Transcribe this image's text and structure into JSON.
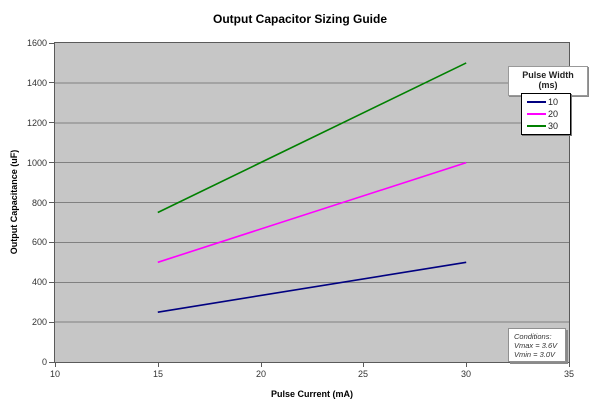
{
  "chart_data": {
    "type": "line",
    "title": "Output Capacitor Sizing Guide",
    "xlabel": "Pulse Current (mA)",
    "ylabel": "Output Capacitance (uF)",
    "xlim": [
      10,
      35
    ],
    "ylim": [
      0,
      1600
    ],
    "x_ticks": [
      10,
      15,
      20,
      25,
      30,
      35
    ],
    "y_ticks": [
      0,
      200,
      400,
      600,
      800,
      1000,
      1200,
      1400,
      1600
    ],
    "grid": "horizontal-only",
    "legend": {
      "title_line1": "Pulse Width",
      "title_line2": "(ms)",
      "position": "right-inside-top"
    },
    "series": [
      {
        "name": "10",
        "color": "#000080",
        "points": [
          [
            15,
            250
          ],
          [
            30,
            500
          ]
        ]
      },
      {
        "name": "20",
        "color": "#FF00FF",
        "points": [
          [
            15,
            500
          ],
          [
            30,
            1000
          ]
        ]
      },
      {
        "name": "30",
        "color": "#008000",
        "points": [
          [
            15,
            750
          ],
          [
            30,
            1500
          ]
        ]
      }
    ],
    "annotation": {
      "lines": [
        "Conditions:",
        "Vmax = 3.6V",
        "Vmin = 3.0V"
      ],
      "position": "bottom-right-inside"
    },
    "colors": {
      "plot_bg": "#C6C6C6",
      "gridline": "#808080",
      "axis": "#5a5a5a",
      "tick_text": "#333333",
      "title_text": "#000000"
    }
  }
}
